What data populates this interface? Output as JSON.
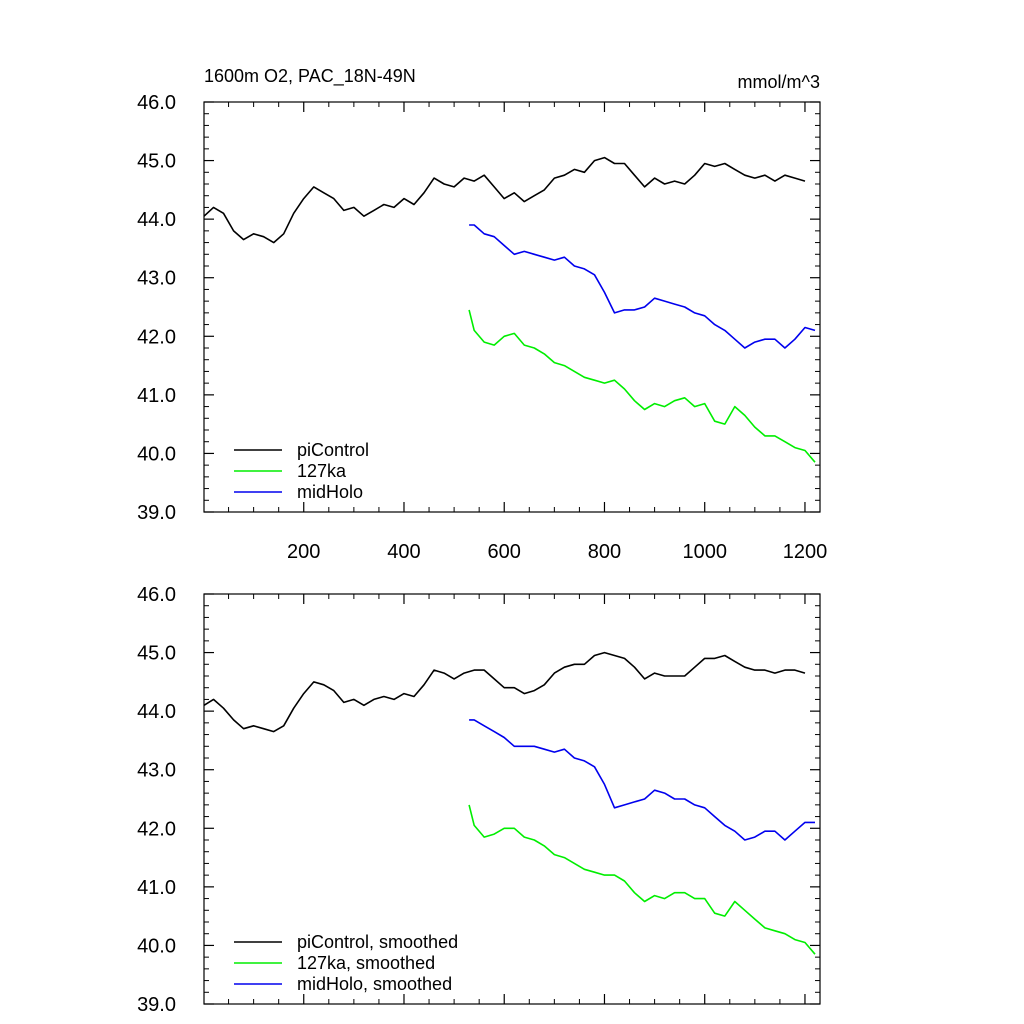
{
  "chart_data": [
    {
      "type": "line",
      "title": "1600m O2, PAC_18N-49N",
      "units": "mmol/m^3",
      "xlim": [
        1,
        1230
      ],
      "ylim": [
        39.0,
        46.0
      ],
      "x_ticks": [
        200,
        400,
        600,
        800,
        1000,
        1200
      ],
      "y_ticks": [
        "39.0",
        "40.0",
        "41.0",
        "42.0",
        "43.0",
        "44.0",
        "45.0",
        "46.0"
      ],
      "legend_position": "bottom-left",
      "series": [
        {
          "name": "piControl",
          "color": "#000000",
          "x": [
            1,
            20,
            40,
            60,
            80,
            100,
            120,
            140,
            160,
            180,
            200,
            220,
            240,
            260,
            280,
            300,
            320,
            340,
            360,
            380,
            400,
            420,
            440,
            460,
            480,
            500,
            520,
            540,
            560,
            580,
            600,
            620,
            640,
            660,
            680,
            700,
            720,
            740,
            760,
            780,
            800,
            820,
            840,
            860,
            880,
            900,
            920,
            940,
            960,
            980,
            1000,
            1020,
            1040,
            1060,
            1080,
            1100,
            1120,
            1140,
            1160,
            1180,
            1200
          ],
          "y": [
            44.05,
            44.2,
            44.1,
            43.8,
            43.65,
            43.75,
            43.7,
            43.6,
            43.75,
            44.1,
            44.35,
            44.55,
            44.45,
            44.35,
            44.15,
            44.2,
            44.05,
            44.15,
            44.25,
            44.2,
            44.35,
            44.25,
            44.45,
            44.7,
            44.6,
            44.55,
            44.7,
            44.65,
            44.75,
            44.55,
            44.35,
            44.45,
            44.3,
            44.4,
            44.5,
            44.7,
            44.75,
            44.85,
            44.8,
            45.0,
            45.05,
            44.95,
            44.95,
            44.75,
            44.55,
            44.7,
            44.6,
            44.65,
            44.6,
            44.75,
            44.95,
            44.9,
            44.95,
            44.85,
            44.75,
            44.7,
            44.75,
            44.65,
            44.75,
            44.7,
            44.65
          ]
        },
        {
          "name": "127ka",
          "color": "#00ee00",
          "x": [
            530,
            540,
            560,
            580,
            600,
            620,
            640,
            660,
            680,
            700,
            720,
            740,
            760,
            780,
            800,
            820,
            840,
            860,
            880,
            900,
            920,
            940,
            960,
            980,
            1000,
            1020,
            1040,
            1060,
            1080,
            1100,
            1120,
            1140,
            1160,
            1180,
            1200,
            1220
          ],
          "y": [
            42.45,
            42.1,
            41.9,
            41.85,
            42.0,
            42.05,
            41.85,
            41.8,
            41.7,
            41.55,
            41.5,
            41.4,
            41.3,
            41.25,
            41.2,
            41.25,
            41.1,
            40.9,
            40.75,
            40.85,
            40.8,
            40.9,
            40.95,
            40.8,
            40.85,
            40.55,
            40.5,
            40.8,
            40.65,
            40.45,
            40.3,
            40.3,
            40.2,
            40.1,
            40.05,
            39.85
          ]
        },
        {
          "name": "midHolo",
          "color": "#0000ee",
          "x": [
            530,
            540,
            560,
            580,
            600,
            620,
            640,
            660,
            680,
            700,
            720,
            740,
            760,
            780,
            800,
            820,
            840,
            860,
            880,
            900,
            920,
            940,
            960,
            980,
            1000,
            1020,
            1040,
            1060,
            1080,
            1100,
            1120,
            1140,
            1160,
            1180,
            1200,
            1220
          ],
          "y": [
            43.9,
            43.9,
            43.75,
            43.7,
            43.55,
            43.4,
            43.45,
            43.4,
            43.35,
            43.3,
            43.35,
            43.2,
            43.15,
            43.05,
            42.75,
            42.4,
            42.45,
            42.45,
            42.5,
            42.65,
            42.6,
            42.55,
            42.5,
            42.4,
            42.35,
            42.2,
            42.1,
            41.95,
            41.8,
            41.9,
            41.95,
            41.95,
            41.8,
            41.95,
            42.15,
            42.1
          ]
        }
      ]
    },
    {
      "type": "line",
      "xlim": [
        1,
        1230
      ],
      "ylim": [
        39.0,
        46.0
      ],
      "x_ticks": [
        200,
        400,
        600,
        800,
        1000,
        1200
      ],
      "y_ticks": [
        "39.0",
        "40.0",
        "41.0",
        "42.0",
        "43.0",
        "44.0",
        "45.0",
        "46.0"
      ],
      "legend_position": "bottom-left",
      "series": [
        {
          "name": "piControl, smoothed",
          "color": "#000000",
          "x": [
            1,
            20,
            40,
            60,
            80,
            100,
            120,
            140,
            160,
            180,
            200,
            220,
            240,
            260,
            280,
            300,
            320,
            340,
            360,
            380,
            400,
            420,
            440,
            460,
            480,
            500,
            520,
            540,
            560,
            580,
            600,
            620,
            640,
            660,
            680,
            700,
            720,
            740,
            760,
            780,
            800,
            820,
            840,
            860,
            880,
            900,
            920,
            940,
            960,
            980,
            1000,
            1020,
            1040,
            1060,
            1080,
            1100,
            1120,
            1140,
            1160,
            1180,
            1200
          ],
          "y": [
            44.1,
            44.2,
            44.05,
            43.85,
            43.7,
            43.75,
            43.7,
            43.65,
            43.75,
            44.05,
            44.3,
            44.5,
            44.45,
            44.35,
            44.15,
            44.2,
            44.1,
            44.2,
            44.25,
            44.2,
            44.3,
            44.25,
            44.45,
            44.7,
            44.65,
            44.55,
            44.65,
            44.7,
            44.7,
            44.55,
            44.4,
            44.4,
            44.3,
            44.35,
            44.45,
            44.65,
            44.75,
            44.8,
            44.8,
            44.95,
            45.0,
            44.95,
            44.9,
            44.75,
            44.55,
            44.65,
            44.6,
            44.6,
            44.6,
            44.75,
            44.9,
            44.9,
            44.95,
            44.85,
            44.75,
            44.7,
            44.7,
            44.65,
            44.7,
            44.7,
            44.65
          ]
        },
        {
          "name": "127ka, smoothed",
          "color": "#00ee00",
          "x": [
            530,
            540,
            560,
            580,
            600,
            620,
            640,
            660,
            680,
            700,
            720,
            740,
            760,
            780,
            800,
            820,
            840,
            860,
            880,
            900,
            920,
            940,
            960,
            980,
            1000,
            1020,
            1040,
            1060,
            1080,
            1100,
            1120,
            1140,
            1160,
            1180,
            1200,
            1220
          ],
          "y": [
            42.4,
            42.05,
            41.85,
            41.9,
            42.0,
            42.0,
            41.85,
            41.8,
            41.7,
            41.55,
            41.5,
            41.4,
            41.3,
            41.25,
            41.2,
            41.2,
            41.1,
            40.9,
            40.75,
            40.85,
            40.8,
            40.9,
            40.9,
            40.8,
            40.8,
            40.55,
            40.5,
            40.75,
            40.6,
            40.45,
            40.3,
            40.25,
            40.2,
            40.1,
            40.05,
            39.85
          ]
        },
        {
          "name": "midHolo, smoothed",
          "color": "#0000ee",
          "x": [
            530,
            540,
            560,
            580,
            600,
            620,
            640,
            660,
            680,
            700,
            720,
            740,
            760,
            780,
            800,
            820,
            840,
            860,
            880,
            900,
            920,
            940,
            960,
            980,
            1000,
            1020,
            1040,
            1060,
            1080,
            1100,
            1120,
            1140,
            1160,
            1180,
            1200,
            1220
          ],
          "y": [
            43.85,
            43.85,
            43.75,
            43.65,
            43.55,
            43.4,
            43.4,
            43.4,
            43.35,
            43.3,
            43.35,
            43.2,
            43.15,
            43.05,
            42.75,
            42.35,
            42.4,
            42.45,
            42.5,
            42.65,
            42.6,
            42.5,
            42.5,
            42.4,
            42.35,
            42.2,
            42.05,
            41.95,
            41.8,
            41.85,
            41.95,
            41.95,
            41.8,
            41.95,
            42.1,
            42.1
          ]
        }
      ]
    }
  ]
}
